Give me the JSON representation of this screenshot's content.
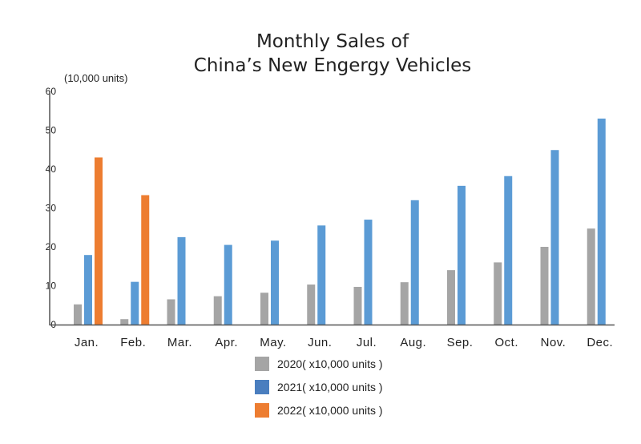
{
  "chart_data": {
    "type": "bar",
    "title": [
      "Monthly Sales of",
      "China’s New Engergy Vehicles"
    ],
    "ylabel": "(10,000 units)",
    "xlabel": "",
    "ylim": [
      0,
      60
    ],
    "yticks": [
      0,
      10,
      20,
      30,
      40,
      50,
      60
    ],
    "grid": false,
    "legend_position": "bottom",
    "categories": [
      "Jan.",
      "Feb.",
      "Mar.",
      "Apr.",
      "May.",
      "Jun.",
      "Jul.",
      "Aug.",
      "Sep.",
      "Oct.",
      "Nov.",
      "Dec."
    ],
    "series": [
      {
        "name": "2020( x10,000 units )",
        "color": "#a5a5a5",
        "legend_color": "#a5a5a5",
        "values": [
          5.2,
          1.4,
          6.5,
          7.3,
          8.2,
          10.3,
          9.7,
          10.9,
          14.0,
          16.0,
          20.0,
          24.7
        ]
      },
      {
        "name": "2021( x10,000 units )",
        "color": "#5b9bd5",
        "legend_color": "#4a7ebf",
        "values": [
          17.9,
          11.0,
          22.5,
          20.5,
          21.6,
          25.5,
          27.0,
          32.0,
          35.7,
          38.2,
          44.9,
          53.0
        ]
      },
      {
        "name": "2022( x10,000 units )",
        "color": "#ed7d31",
        "legend_color": "#ed7d31",
        "values": [
          43.0,
          33.3,
          null,
          null,
          null,
          null,
          null,
          null,
          null,
          null,
          null,
          null
        ]
      }
    ]
  }
}
